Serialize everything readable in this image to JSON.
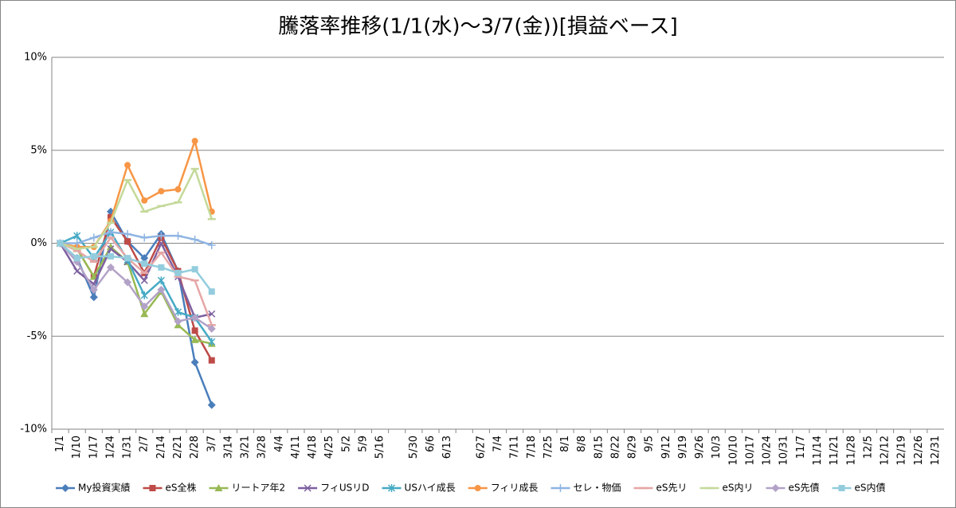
{
  "chart_data": {
    "type": "line",
    "title": "騰落率推移(1/1(水)～3/7(金))[損益ベース]",
    "categories": [
      "1/1",
      "1/10",
      "1/17",
      "1/24",
      "1/31",
      "2/7",
      "2/14",
      "2/21",
      "2/28",
      "3/7",
      "3/14",
      "3/21",
      "3/28",
      "4/4",
      "4/11",
      "4/18",
      "4/25",
      "5/2",
      "5/9",
      "5/16",
      null,
      "5/30",
      "6/6",
      "6/13",
      null,
      "6/27",
      "7/4",
      "7/11",
      "7/18",
      "7/25",
      "8/1",
      "8/8",
      "8/15",
      "8/22",
      "8/29",
      "9/5",
      "9/12",
      "9/19",
      "9/26",
      "10/3",
      "10/10",
      "10/17",
      "10/24",
      "10/31",
      "11/7",
      "11/14",
      "11/21",
      "11/28",
      "12/5",
      "12/12",
      "12/19",
      "12/26",
      "12/31"
    ],
    "ylim": [
      -10,
      10
    ],
    "yticks": [
      {
        "value": -10,
        "label": "-10%"
      },
      {
        "value": -5,
        "label": "-5%"
      },
      {
        "value": 0,
        "label": "0%"
      },
      {
        "value": 5,
        "label": "5%"
      },
      {
        "value": 10,
        "label": "10%"
      }
    ],
    "grid": true,
    "legend": "bottom",
    "series": [
      {
        "name": "My投資実績",
        "color": "#4a7ebb",
        "marker": "diamond",
        "values": [
          0,
          -0.8,
          -2.9,
          1.7,
          0.1,
          -0.8,
          0.5,
          -1.5,
          -6.4,
          -8.7,
          null,
          null,
          null,
          null,
          null,
          null,
          null,
          null,
          null,
          null,
          null,
          null,
          null,
          null,
          null,
          null,
          null,
          null,
          null,
          null,
          null,
          null,
          null,
          null,
          null,
          null,
          null,
          null,
          null,
          null,
          null,
          null,
          null,
          null,
          null,
          null,
          null,
          null,
          null,
          null,
          null,
          null,
          null
        ]
      },
      {
        "name": "eS全株",
        "color": "#be4b48",
        "marker": "square",
        "values": [
          0,
          -0.3,
          -1.8,
          1.4,
          0.1,
          -1.6,
          0.3,
          -1.5,
          -4.7,
          -6.3,
          null,
          null,
          null,
          null,
          null,
          null,
          null,
          null,
          null,
          null,
          null,
          null,
          null,
          null,
          null,
          null,
          null,
          null,
          null,
          null,
          null,
          null,
          null,
          null,
          null,
          null,
          null,
          null,
          null,
          null,
          null,
          null,
          null,
          null,
          null,
          null,
          null,
          null,
          null,
          null,
          null,
          null,
          null
        ]
      },
      {
        "name": "リートア年2",
        "color": "#98b954",
        "marker": "triangle",
        "values": [
          0,
          -0.3,
          -1.8,
          -0.2,
          -1.0,
          -3.8,
          -2.6,
          -4.4,
          -5.2,
          -5.4,
          null,
          null,
          null,
          null,
          null,
          null,
          null,
          null,
          null,
          null,
          null,
          null,
          null,
          null,
          null,
          null,
          null,
          null,
          null,
          null,
          null,
          null,
          null,
          null,
          null,
          null,
          null,
          null,
          null,
          null,
          null,
          null,
          null,
          null,
          null,
          null,
          null,
          null,
          null,
          null,
          null,
          null,
          null
        ]
      },
      {
        "name": "フィUSリD",
        "color": "#7d60a0",
        "marker": "x",
        "values": [
          0,
          -1.5,
          -2.2,
          -0.3,
          -1.0,
          -2.0,
          0.0,
          -1.8,
          -4.0,
          -3.8,
          null,
          null,
          null,
          null,
          null,
          null,
          null,
          null,
          null,
          null,
          null,
          null,
          null,
          null,
          null,
          null,
          null,
          null,
          null,
          null,
          null,
          null,
          null,
          null,
          null,
          null,
          null,
          null,
          null,
          null,
          null,
          null,
          null,
          null,
          null,
          null,
          null,
          null,
          null,
          null,
          null,
          null,
          null
        ]
      },
      {
        "name": "USハイ成長",
        "color": "#46aac5",
        "marker": "star",
        "values": [
          0,
          0.4,
          -0.8,
          0.6,
          -0.9,
          -2.8,
          -2.0,
          -3.7,
          -4.0,
          -5.3,
          null,
          null,
          null,
          null,
          null,
          null,
          null,
          null,
          null,
          null,
          null,
          null,
          null,
          null,
          null,
          null,
          null,
          null,
          null,
          null,
          null,
          null,
          null,
          null,
          null,
          null,
          null,
          null,
          null,
          null,
          null,
          null,
          null,
          null,
          null,
          null,
          null,
          null,
          null,
          null,
          null,
          null,
          null
        ]
      },
      {
        "name": "フィリ成長",
        "color": "#f79646",
        "marker": "circle",
        "values": [
          0,
          -0.2,
          -0.2,
          1.2,
          4.2,
          2.3,
          2.8,
          2.9,
          5.5,
          1.7,
          null,
          null,
          null,
          null,
          null,
          null,
          null,
          null,
          null,
          null,
          null,
          null,
          null,
          null,
          null,
          null,
          null,
          null,
          null,
          null,
          null,
          null,
          null,
          null,
          null,
          null,
          null,
          null,
          null,
          null,
          null,
          null,
          null,
          null,
          null,
          null,
          null,
          null,
          null,
          null,
          null,
          null,
          null
        ]
      },
      {
        "name": "セレ・物価",
        "color": "#8eb4e3",
        "marker": "plus",
        "values": [
          0,
          0.0,
          0.3,
          0.6,
          0.5,
          0.3,
          0.4,
          0.4,
          0.2,
          -0.1,
          null,
          null,
          null,
          null,
          null,
          null,
          null,
          null,
          null,
          null,
          null,
          null,
          null,
          null,
          null,
          null,
          null,
          null,
          null,
          null,
          null,
          null,
          null,
          null,
          null,
          null,
          null,
          null,
          null,
          null,
          null,
          null,
          null,
          null,
          null,
          null,
          null,
          null,
          null,
          null,
          null,
          null,
          null
        ]
      },
      {
        "name": "eS先リ",
        "color": "#e6a6a6",
        "marker": "dash",
        "values": [
          0,
          -0.4,
          -1.0,
          0.3,
          -0.8,
          -1.6,
          -0.5,
          -1.8,
          -2.0,
          -4.4,
          null,
          null,
          null,
          null,
          null,
          null,
          null,
          null,
          null,
          null,
          null,
          null,
          null,
          null,
          null,
          null,
          null,
          null,
          null,
          null,
          null,
          null,
          null,
          null,
          null,
          null,
          null,
          null,
          null,
          null,
          null,
          null,
          null,
          null,
          null,
          null,
          null,
          null,
          null,
          null,
          null,
          null,
          null
        ]
      },
      {
        "name": "eS内リ",
        "color": "#c4d99a",
        "marker": "dash",
        "values": [
          0,
          -0.3,
          -0.2,
          1.1,
          3.4,
          1.7,
          2.0,
          2.2,
          4.0,
          1.3,
          null,
          null,
          null,
          null,
          null,
          null,
          null,
          null,
          null,
          null,
          null,
          null,
          null,
          null,
          null,
          null,
          null,
          null,
          null,
          null,
          null,
          null,
          null,
          null,
          null,
          null,
          null,
          null,
          null,
          null,
          null,
          null,
          null,
          null,
          null,
          null,
          null,
          null,
          null,
          null,
          null,
          null,
          null
        ]
      },
      {
        "name": "eS先債",
        "color": "#b3a2c7",
        "marker": "diamond",
        "values": [
          0,
          -1.0,
          -2.5,
          -1.3,
          -2.1,
          -3.4,
          -2.5,
          -4.2,
          -4.0,
          -4.6,
          null,
          null,
          null,
          null,
          null,
          null,
          null,
          null,
          null,
          null,
          null,
          null,
          null,
          null,
          null,
          null,
          null,
          null,
          null,
          null,
          null,
          null,
          null,
          null,
          null,
          null,
          null,
          null,
          null,
          null,
          null,
          null,
          null,
          null,
          null,
          null,
          null,
          null,
          null,
          null,
          null,
          null,
          null
        ]
      },
      {
        "name": "eS内債",
        "color": "#93cddd",
        "marker": "square",
        "values": [
          0,
          -0.8,
          -0.7,
          -0.7,
          -0.8,
          -1.1,
          -1.3,
          -1.6,
          -1.4,
          -2.6,
          null,
          null,
          null,
          null,
          null,
          null,
          null,
          null,
          null,
          null,
          null,
          null,
          null,
          null,
          null,
          null,
          null,
          null,
          null,
          null,
          null,
          null,
          null,
          null,
          null,
          null,
          null,
          null,
          null,
          null,
          null,
          null,
          null,
          null,
          null,
          null,
          null,
          null,
          null,
          null,
          null,
          null,
          null
        ]
      }
    ]
  }
}
